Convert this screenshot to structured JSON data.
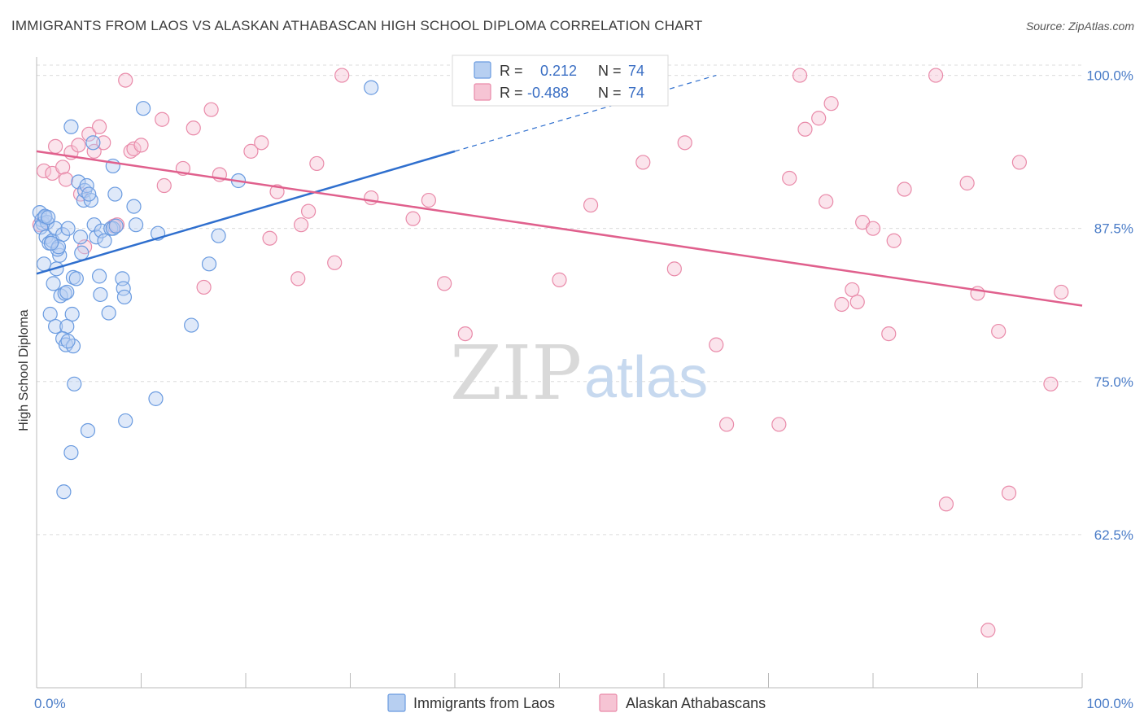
{
  "title": "IMMIGRANTS FROM LAOS VS ALASKAN ATHABASCAN HIGH SCHOOL DIPLOMA CORRELATION CHART",
  "source": "Source: ZipAtlas.com",
  "watermark": {
    "zip": "ZIP",
    "atlas": "atlas"
  },
  "colors": {
    "blue": "#6a9be0",
    "blue_fill": "#b7cff1",
    "blue_line": "#2f6fce",
    "pink": "#e98aa9",
    "pink_fill": "#f6c4d4",
    "pink_line": "#e0608d"
  },
  "legend": {
    "r_label": "R =",
    "n_label": "N =",
    "series1": {
      "r": "0.212",
      "n": "74"
    },
    "series2": {
      "r": "-0.488",
      "n": "74"
    }
  },
  "chart_data": {
    "type": "scatter",
    "title": "IMMIGRANTS FROM LAOS VS ALASKAN ATHABASCAN HIGH SCHOOL DIPLOMA CORRELATION CHART",
    "xlabel": "",
    "ylabel": "High School Diploma",
    "xlim": [
      0,
      100
    ],
    "ylim": [
      50,
      101.5
    ],
    "x_tick_labels": [
      "0.0%",
      "100.0%"
    ],
    "y_ticks": [
      62.5,
      75.0,
      87.5,
      100.0
    ],
    "y_tick_labels": [
      "62.5%",
      "75.0%",
      "87.5%",
      "100.0%"
    ],
    "grid": true,
    "legend_position": "top-center",
    "series": [
      {
        "name": "Immigrants from Laos",
        "color": "#6a9be0",
        "trend": {
          "x": [
            0,
            40
          ],
          "y": [
            83.8,
            93.8
          ],
          "dashed_to": [
            65,
            100
          ]
        },
        "points": [
          [
            0.3,
            88.8
          ],
          [
            0.5,
            88.2
          ],
          [
            0.6,
            87.9
          ],
          [
            0.8,
            88.4
          ],
          [
            1.0,
            88.0
          ],
          [
            0.4,
            87.6
          ],
          [
            0.9,
            86.8
          ],
          [
            1.2,
            86.3
          ],
          [
            1.5,
            86.5
          ],
          [
            1.8,
            87.5
          ],
          [
            0.7,
            84.6
          ],
          [
            1.9,
            84.2
          ],
          [
            2.2,
            85.3
          ],
          [
            2.0,
            85.8
          ],
          [
            2.5,
            87.0
          ],
          [
            3.0,
            87.5
          ],
          [
            3.5,
            83.5
          ],
          [
            3.8,
            83.4
          ],
          [
            1.6,
            83.0
          ],
          [
            2.3,
            82.0
          ],
          [
            2.7,
            82.2
          ],
          [
            2.9,
            82.3
          ],
          [
            1.3,
            80.5
          ],
          [
            3.4,
            80.5
          ],
          [
            1.8,
            79.5
          ],
          [
            2.9,
            79.5
          ],
          [
            2.5,
            78.5
          ],
          [
            2.8,
            78.0
          ],
          [
            3.5,
            77.9
          ],
          [
            3.6,
            74.8
          ],
          [
            4.0,
            91.3
          ],
          [
            4.2,
            86.8
          ],
          [
            4.5,
            89.8
          ],
          [
            4.3,
            85.5
          ],
          [
            4.6,
            90.6
          ],
          [
            4.8,
            91.0
          ],
          [
            5.2,
            89.8
          ],
          [
            5.0,
            90.3
          ],
          [
            5.5,
            87.8
          ],
          [
            5.7,
            86.8
          ],
          [
            6.0,
            83.6
          ],
          [
            6.1,
            82.1
          ],
          [
            6.2,
            87.3
          ],
          [
            6.5,
            86.5
          ],
          [
            6.9,
            80.6
          ],
          [
            7.1,
            87.5
          ],
          [
            7.3,
            87.5
          ],
          [
            7.5,
            90.3
          ],
          [
            7.6,
            87.7
          ],
          [
            8.2,
            83.4
          ],
          [
            8.3,
            82.6
          ],
          [
            8.4,
            81.9
          ],
          [
            8.5,
            71.8
          ],
          [
            9.3,
            89.3
          ],
          [
            9.5,
            87.8
          ],
          [
            10.2,
            97.3
          ],
          [
            11.4,
            73.6
          ],
          [
            11.6,
            87.1
          ],
          [
            14.8,
            79.6
          ],
          [
            16.5,
            84.6
          ],
          [
            17.4,
            86.9
          ],
          [
            19.3,
            91.4
          ],
          [
            3.3,
            95.8
          ],
          [
            5.4,
            94.5
          ],
          [
            7.3,
            92.6
          ],
          [
            4.9,
            71.0
          ],
          [
            3.3,
            69.2
          ],
          [
            2.6,
            66.0
          ],
          [
            3.0,
            78.3
          ],
          [
            2.1,
            86.0
          ],
          [
            1.4,
            86.3
          ],
          [
            0.8,
            88.5
          ],
          [
            1.1,
            88.4
          ],
          [
            32.0,
            99.0
          ]
        ]
      },
      {
        "name": "Alaskan Athabascans",
        "color": "#e98aa9",
        "trend": {
          "x": [
            0,
            100
          ],
          "y": [
            93.8,
            81.2
          ]
        },
        "points": [
          [
            0.3,
            87.8
          ],
          [
            0.7,
            92.2
          ],
          [
            1.5,
            92.0
          ],
          [
            1.8,
            94.2
          ],
          [
            2.5,
            92.5
          ],
          [
            2.8,
            91.5
          ],
          [
            3.3,
            93.7
          ],
          [
            4.0,
            94.3
          ],
          [
            4.2,
            90.3
          ],
          [
            4.6,
            86.0
          ],
          [
            5.0,
            95.2
          ],
          [
            5.5,
            93.8
          ],
          [
            6.0,
            95.8
          ],
          [
            6.4,
            94.5
          ],
          [
            7.4,
            87.7
          ],
          [
            7.7,
            87.8
          ],
          [
            8.5,
            99.6
          ],
          [
            9.0,
            93.8
          ],
          [
            9.3,
            94.0
          ],
          [
            10.0,
            94.3
          ],
          [
            12.0,
            96.4
          ],
          [
            12.2,
            91.0
          ],
          [
            14.0,
            92.4
          ],
          [
            15.0,
            95.7
          ],
          [
            16.0,
            82.7
          ],
          [
            16.7,
            97.2
          ],
          [
            17.5,
            91.9
          ],
          [
            20.5,
            93.8
          ],
          [
            21.5,
            94.5
          ],
          [
            22.3,
            86.7
          ],
          [
            23.0,
            90.5
          ],
          [
            25.0,
            83.4
          ],
          [
            25.3,
            87.8
          ],
          [
            26.0,
            88.9
          ],
          [
            26.8,
            92.8
          ],
          [
            28.5,
            84.7
          ],
          [
            29.2,
            100.0
          ],
          [
            32.0,
            90.0
          ],
          [
            36.0,
            88.3
          ],
          [
            37.5,
            89.8
          ],
          [
            39.0,
            83.0
          ],
          [
            41.0,
            78.9
          ],
          [
            50.0,
            83.3
          ],
          [
            53.0,
            89.4
          ],
          [
            58.0,
            92.9
          ],
          [
            61.0,
            84.2
          ],
          [
            62.0,
            94.5
          ],
          [
            65.0,
            78.0
          ],
          [
            66.0,
            71.5
          ],
          [
            71.0,
            71.5
          ],
          [
            72.0,
            91.6
          ],
          [
            73.0,
            100.0
          ],
          [
            73.5,
            95.6
          ],
          [
            74.8,
            96.5
          ],
          [
            75.5,
            89.7
          ],
          [
            76.0,
            97.7
          ],
          [
            77.0,
            81.3
          ],
          [
            78.0,
            82.5
          ],
          [
            78.5,
            81.5
          ],
          [
            79.0,
            88.0
          ],
          [
            80.0,
            87.5
          ],
          [
            81.5,
            78.9
          ],
          [
            82.0,
            86.5
          ],
          [
            83.0,
            90.7
          ],
          [
            86.0,
            100.0
          ],
          [
            89.0,
            91.2
          ],
          [
            90.0,
            82.2
          ],
          [
            91.0,
            54.7
          ],
          [
            92.0,
            79.1
          ],
          [
            93.0,
            65.9
          ],
          [
            94.0,
            92.9
          ],
          [
            97.0,
            74.8
          ],
          [
            98.0,
            82.3
          ],
          [
            87.0,
            65.0
          ]
        ]
      }
    ]
  },
  "bottom_legend": {
    "series1": "Immigrants from Laos",
    "series2": "Alaskan Athabascans"
  }
}
